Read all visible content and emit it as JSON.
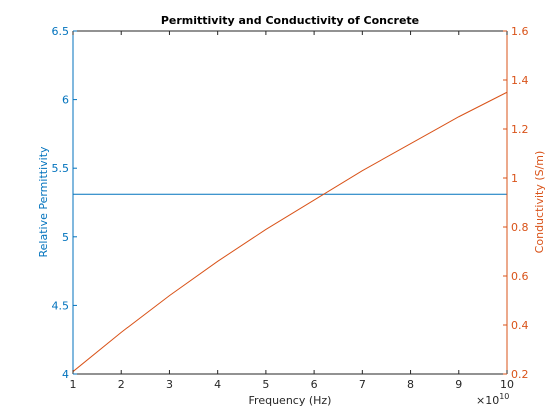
{
  "chart_data": {
    "type": "line",
    "title": "Permittivity and Conductivity of Concrete",
    "xlabel": "Frequency (Hz)",
    "x_exponent": "×10",
    "x_exponent_power": "10",
    "xlim": [
      1,
      10
    ],
    "x_ticks": [
      "1",
      "2",
      "3",
      "4",
      "5",
      "6",
      "7",
      "8",
      "9",
      "10"
    ],
    "left_axis": {
      "label": "Relative Permittivity",
      "ylim": [
        4,
        6.5
      ],
      "ticks": [
        "4",
        "4.5",
        "5",
        "5.5",
        "6",
        "6.5"
      ],
      "color": "#0072BD"
    },
    "right_axis": {
      "label": "Conductivity (S/m)",
      "ylim": [
        0.2,
        1.6
      ],
      "ticks": [
        "0.2",
        "0.4",
        "0.6",
        "0.8",
        "1",
        "1.2",
        "1.4",
        "1.6"
      ],
      "color": "#D95319"
    },
    "series": [
      {
        "axis": "left",
        "x": [
          1,
          2,
          3,
          4,
          5,
          6,
          7,
          8,
          9,
          10
        ],
        "values": [
          5.31,
          5.31,
          5.31,
          5.31,
          5.31,
          5.31,
          5.31,
          5.31,
          5.31,
          5.31
        ]
      },
      {
        "axis": "right",
        "x": [
          1,
          2,
          3,
          4,
          5,
          6,
          7,
          8,
          9,
          10
        ],
        "values": [
          0.21,
          0.37,
          0.52,
          0.66,
          0.79,
          0.91,
          1.03,
          1.14,
          1.25,
          1.35
        ]
      }
    ],
    "grid": false,
    "legend": "none"
  }
}
